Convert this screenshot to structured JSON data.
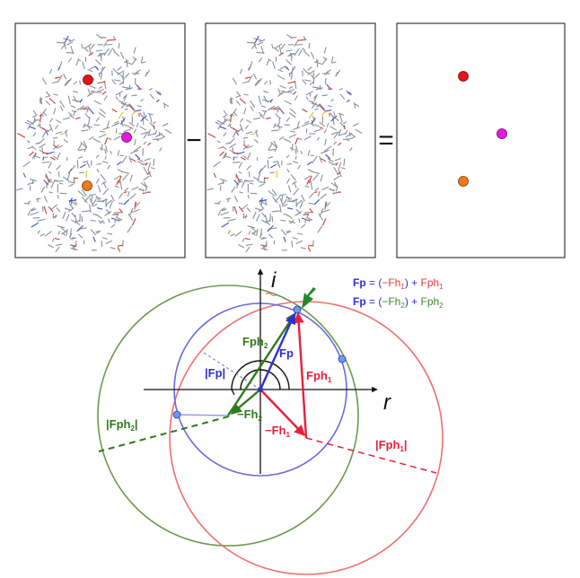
{
  "panels": {
    "operators": {
      "minus": "−",
      "equals": "="
    },
    "atom_colors": {
      "red": "#e8131b",
      "magenta": "#e619e0",
      "orange": "#f07a1a"
    },
    "structure_colors": {
      "bond": "#8a8f9a",
      "oxygen": "#d23a2a",
      "nitrogen": "#3a4fd0",
      "sulfur": "#d8c020"
    }
  },
  "harker": {
    "axes": {
      "real": "r",
      "imaginary": "i"
    },
    "labels": {
      "fp": "Fp",
      "abs_fp": "|Fp|",
      "fph1": "Fph",
      "fph1_sub": "1",
      "fph2": "Fph",
      "fph2_sub": "2",
      "neg_fh1": "−Fh",
      "neg_fh1_sub": "1",
      "neg_fh2": "−Fh",
      "neg_fh2_sub": "2",
      "abs_fph1": "|Fph",
      "abs_fph1_sub": "1",
      "abs_fph1_end": "|",
      "abs_fph2": "|Fph",
      "abs_fph2_sub": "2",
      "abs_fph2_end": "|"
    },
    "legend": [
      {
        "lhs": "Fp",
        "eq": " = (",
        "term1": "−Fh",
        "term1_sub": "1",
        "plus": ") + ",
        "term2": "Fph",
        "term2_sub": "1",
        "term1_color": "#e8333f",
        "term2_color": "#e8333f"
      },
      {
        "lhs": "Fp",
        "eq": " = (",
        "term1": "−Fh",
        "term1_sub": "2",
        "plus": ") + ",
        "term2": "Fph",
        "term2_sub": "2",
        "term1_color": "#3f8a2a",
        "term2_color": "#3f8a2a"
      }
    ],
    "colors": {
      "fp_blue": "#2f2fd6",
      "fph1_red": "#e8203a",
      "fph2_green": "#2f7a1a",
      "circle_red": "#f07070",
      "circle_green": "#6a9a4a",
      "circle_blue": "#6a6ae0",
      "point_fill": "#6f9be0",
      "solution_arrow": "#1f8a2a"
    }
  }
}
